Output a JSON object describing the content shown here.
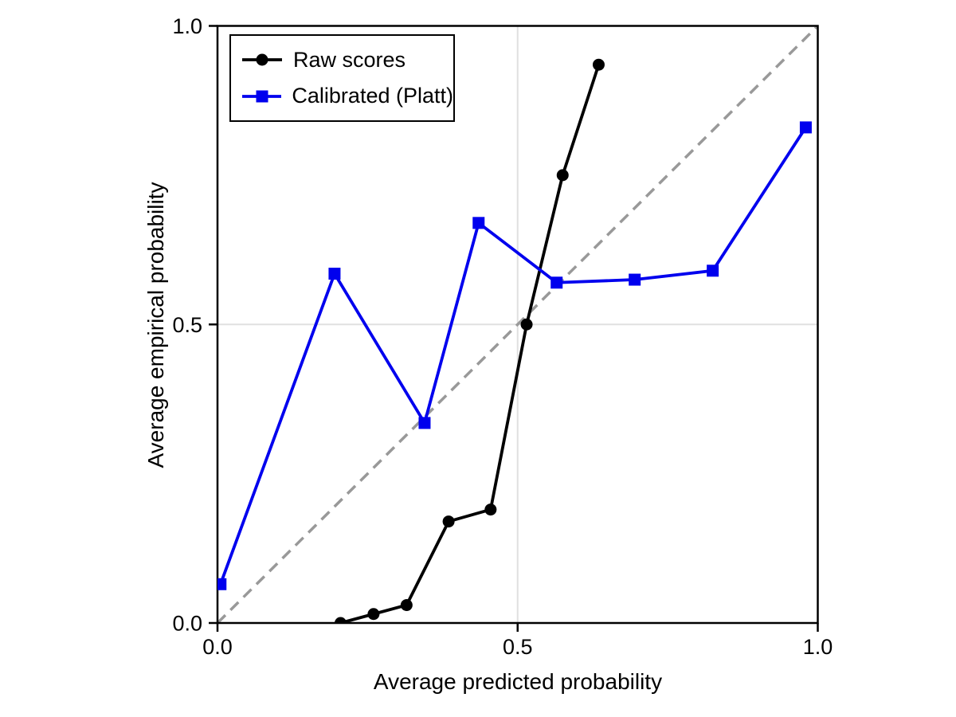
{
  "figure": {
    "background": "#ffffff",
    "axis_color": "#000000"
  },
  "chart_data": {
    "type": "line",
    "title": "",
    "xlabel": "Average predicted probability",
    "ylabel": "Average empirical probability",
    "xlim": [
      0.0,
      1.0
    ],
    "ylim": [
      0.0,
      1.0
    ],
    "xticks": {
      "values": [
        0.0,
        0.5,
        1.0
      ],
      "labels": [
        "0.0",
        "0.5",
        "1.0"
      ]
    },
    "yticks": {
      "values": [
        0.0,
        0.5,
        1.0
      ],
      "labels": [
        "0.0",
        "0.5",
        "1.0"
      ]
    },
    "grid": {
      "x_values": [
        0.5
      ],
      "y_values": [
        0.5
      ],
      "color": "#e0e0e0"
    },
    "reference_line": {
      "label": "identity",
      "from": [
        0.0,
        0.0
      ],
      "to": [
        1.0,
        1.0
      ],
      "style": "dashed",
      "color": "#999999"
    },
    "legend_position": "upper-left",
    "series": [
      {
        "name": "Raw scores",
        "color": "#000000",
        "marker": "circle",
        "points": [
          [
            0.205,
            0.0
          ],
          [
            0.26,
            0.015
          ],
          [
            0.315,
            0.03
          ],
          [
            0.385,
            0.17
          ],
          [
            0.455,
            0.19
          ],
          [
            0.515,
            0.5
          ],
          [
            0.575,
            0.75
          ],
          [
            0.635,
            0.935
          ]
        ]
      },
      {
        "name": "Calibrated (Platt)",
        "color": "#0000ee",
        "marker": "square",
        "points": [
          [
            0.005,
            0.065
          ],
          [
            0.195,
            0.585
          ],
          [
            0.345,
            0.335
          ],
          [
            0.435,
            0.67
          ],
          [
            0.565,
            0.57
          ],
          [
            0.695,
            0.575
          ],
          [
            0.825,
            0.59
          ],
          [
            0.98,
            0.83
          ]
        ]
      }
    ]
  }
}
